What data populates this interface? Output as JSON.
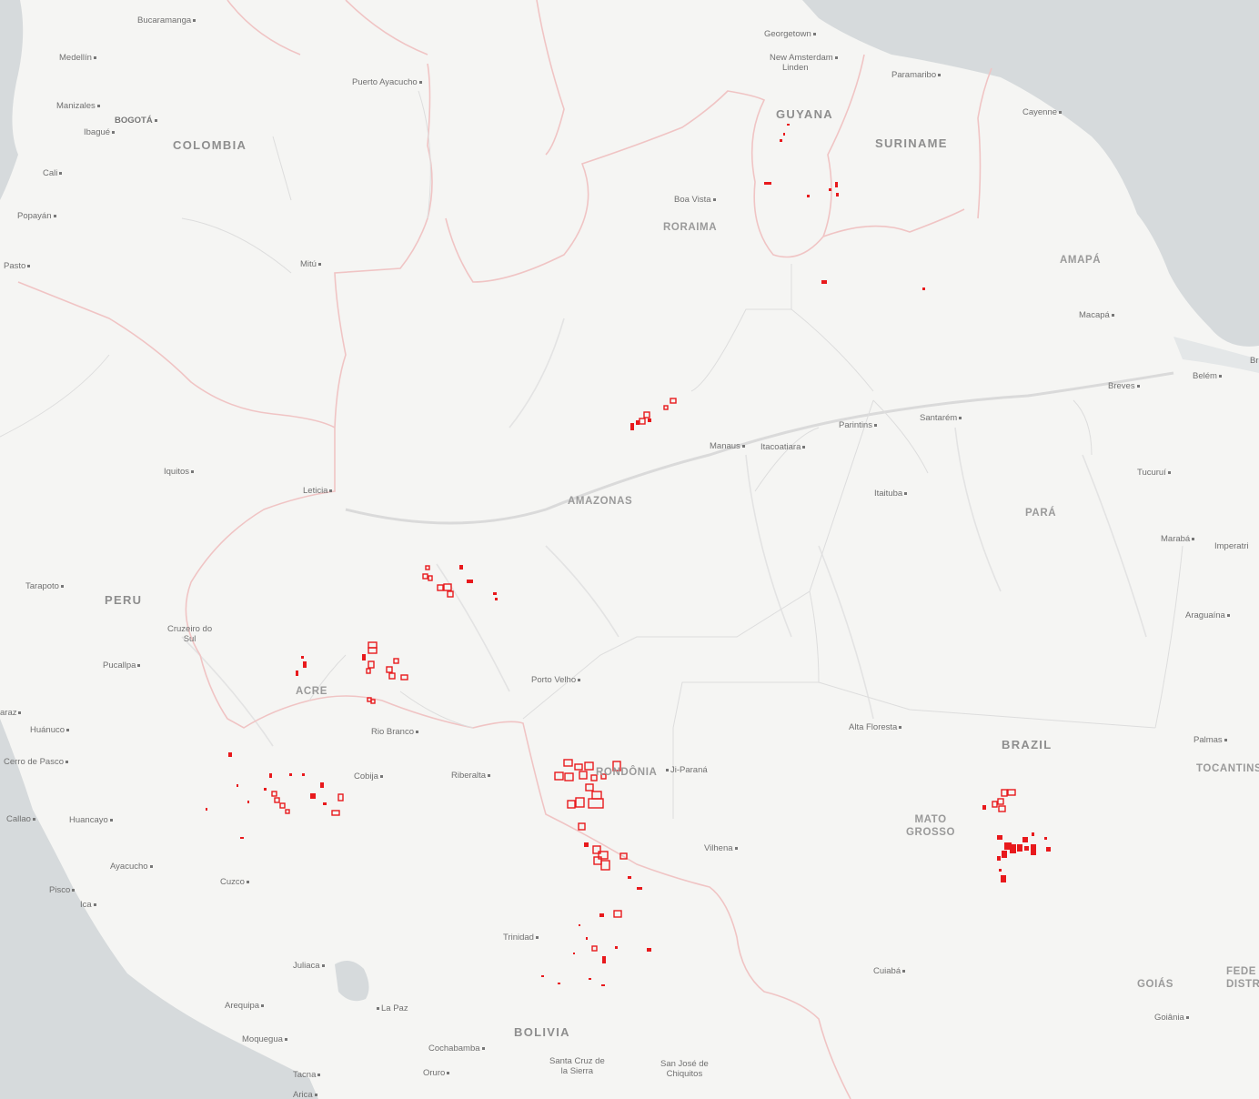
{
  "colors": {
    "land": "#f5f5f3",
    "water": "#d6dadc",
    "rivers": "#dcdcdc",
    "border": "#f0b9b9",
    "state_border": "#d9d9d9",
    "fire": "#e8191c"
  },
  "countries": [
    {
      "id": "colombia",
      "name": "COLOMBIA"
    },
    {
      "id": "peru",
      "name": "PERU"
    },
    {
      "id": "brazil",
      "name": "BRAZIL"
    },
    {
      "id": "bolivia",
      "name": "BOLIVIA"
    },
    {
      "id": "guyana",
      "name": "GUYANA"
    },
    {
      "id": "suriname",
      "name": "SURINAME"
    }
  ],
  "states": [
    {
      "id": "roraima",
      "name": "RORAIMA"
    },
    {
      "id": "amapa",
      "name": "AMAPÁ"
    },
    {
      "id": "amazonas",
      "name": "AMAZONAS"
    },
    {
      "id": "para",
      "name": "PARÁ"
    },
    {
      "id": "acre",
      "name": "ACRE"
    },
    {
      "id": "rondonia",
      "name": "RONDÔNIA"
    },
    {
      "id": "mato-grosso",
      "name": "MATO\nGROSSO"
    },
    {
      "id": "tocantins",
      "name": "TOCANTINS"
    },
    {
      "id": "goias",
      "name": "GOIÁS"
    },
    {
      "id": "federal-district",
      "name": "FEDE\nDISTR"
    }
  ],
  "cities": [
    {
      "id": "bucaramanga",
      "name": "Bucaramanga"
    },
    {
      "id": "medellin",
      "name": "Medellín"
    },
    {
      "id": "manizales",
      "name": "Manizales"
    },
    {
      "id": "bogota",
      "name": "BOGOTÁ"
    },
    {
      "id": "ibague",
      "name": "Ibagué"
    },
    {
      "id": "cali",
      "name": "Cali"
    },
    {
      "id": "popayan",
      "name": "Popayán"
    },
    {
      "id": "pasto",
      "name": "Pasto"
    },
    {
      "id": "puerto-ayacucho",
      "name": "Puerto Ayacucho"
    },
    {
      "id": "mitu",
      "name": "Mitú"
    },
    {
      "id": "georgetown",
      "name": "Georgetown"
    },
    {
      "id": "new-amsterdam",
      "name": "New Amsterdam"
    },
    {
      "id": "linden",
      "name": "Linden"
    },
    {
      "id": "paramaribo",
      "name": "Paramaribo"
    },
    {
      "id": "cayenne",
      "name": "Cayenne"
    },
    {
      "id": "boa-vista",
      "name": "Boa Vista"
    },
    {
      "id": "macapa",
      "name": "Macapá"
    },
    {
      "id": "belem",
      "name": "Belém"
    },
    {
      "id": "breves",
      "name": "Breves"
    },
    {
      "id": "br",
      "name": "Br"
    },
    {
      "id": "parintins",
      "name": "Parintins"
    },
    {
      "id": "santarem",
      "name": "Santarém"
    },
    {
      "id": "manaus",
      "name": "Manaus"
    },
    {
      "id": "itacoatiara",
      "name": "Itacoatiara"
    },
    {
      "id": "iquitos",
      "name": "Iquitos"
    },
    {
      "id": "leticia",
      "name": "Leticia"
    },
    {
      "id": "itaituba",
      "name": "Itaituba"
    },
    {
      "id": "tucurui",
      "name": "Tucuruí"
    },
    {
      "id": "maraba",
      "name": "Marabá"
    },
    {
      "id": "imperatriz",
      "name": "Imperatri"
    },
    {
      "id": "araguaina",
      "name": "Araguaína"
    },
    {
      "id": "tarapoto",
      "name": "Tarapoto"
    },
    {
      "id": "cruzeiro-do-sul",
      "name": "Cruzeiro do\nSul"
    },
    {
      "id": "pucallpa",
      "name": "Pucallpa"
    },
    {
      "id": "porto-velho",
      "name": "Porto Velho"
    },
    {
      "id": "araz",
      "name": "araz"
    },
    {
      "id": "huanuco",
      "name": "Huánuco"
    },
    {
      "id": "rio-branco",
      "name": "Rio Branco"
    },
    {
      "id": "cerro-de-pasco",
      "name": "Cerro de Pasco"
    },
    {
      "id": "cobija",
      "name": "Cobija"
    },
    {
      "id": "riberalta",
      "name": "Riberalta"
    },
    {
      "id": "ji-parana",
      "name": "Ji-Paraná"
    },
    {
      "id": "alta-floresta",
      "name": "Alta Floresta"
    },
    {
      "id": "palmas",
      "name": "Palmas"
    },
    {
      "id": "callao",
      "name": "Callao"
    },
    {
      "id": "huancayo",
      "name": "Huancayo"
    },
    {
      "id": "vilhena",
      "name": "Vilhena"
    },
    {
      "id": "ayacucho",
      "name": "Ayacucho"
    },
    {
      "id": "cuzco",
      "name": "Cuzco"
    },
    {
      "id": "pisco",
      "name": "Pisco"
    },
    {
      "id": "ica",
      "name": "Ica"
    },
    {
      "id": "trinidad",
      "name": "Trinidad"
    },
    {
      "id": "juliaca",
      "name": "Juliaca"
    },
    {
      "id": "cuiaba",
      "name": "Cuiabá"
    },
    {
      "id": "arequipa",
      "name": "Arequipa"
    },
    {
      "id": "la-paz",
      "name": "La Paz"
    },
    {
      "id": "goiania",
      "name": "Goiânia"
    },
    {
      "id": "moquegua",
      "name": "Moquegua"
    },
    {
      "id": "cochabamba",
      "name": "Cochabamba"
    },
    {
      "id": "santa-cruz",
      "name": "Santa Cruz de\nla Sierra"
    },
    {
      "id": "san-jose",
      "name": "San José de\nChiquitos"
    },
    {
      "id": "tacna",
      "name": "Tacna"
    },
    {
      "id": "oruro",
      "name": "Oruro"
    },
    {
      "id": "arica",
      "name": "Arica"
    }
  ]
}
